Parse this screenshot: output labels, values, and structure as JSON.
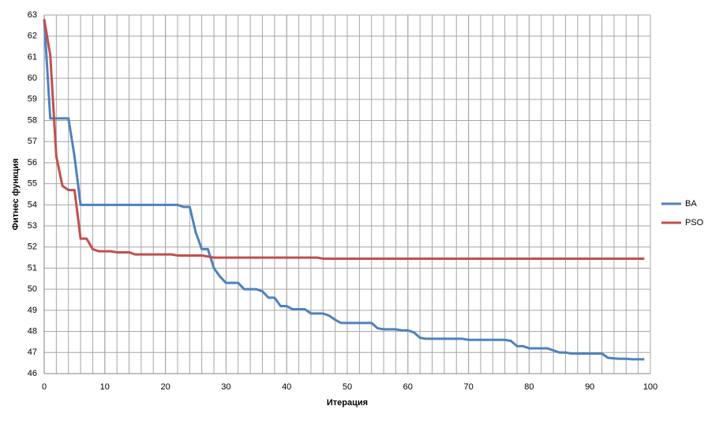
{
  "chart_data": {
    "type": "line",
    "x_label": "Итерация",
    "y_label": "Фитнес функция",
    "x": [
      0,
      1,
      2,
      3,
      4,
      5,
      6,
      7,
      8,
      9,
      10,
      11,
      12,
      13,
      14,
      15,
      16,
      17,
      18,
      19,
      20,
      21,
      22,
      23,
      24,
      25,
      26,
      27,
      28,
      29,
      30,
      31,
      32,
      33,
      34,
      35,
      36,
      37,
      38,
      39,
      40,
      41,
      42,
      43,
      44,
      45,
      46,
      47,
      48,
      49,
      50,
      51,
      52,
      53,
      54,
      55,
      56,
      57,
      58,
      59,
      60,
      61,
      62,
      63,
      64,
      65,
      66,
      67,
      68,
      69,
      70,
      71,
      72,
      73,
      74,
      75,
      76,
      77,
      78,
      79,
      80,
      81,
      82,
      83,
      84,
      85,
      86,
      87,
      88,
      89,
      90,
      91,
      92,
      93,
      94,
      95,
      96,
      97,
      98,
      99
    ],
    "series": [
      {
        "name": "BA",
        "color": "#4f81bd",
        "values": [
          62.8,
          58.1,
          58.1,
          58.1,
          58.1,
          56.3,
          54,
          54,
          54,
          54,
          54,
          54,
          54,
          54,
          54,
          54,
          54,
          54,
          54,
          54,
          54,
          54,
          54,
          53.9,
          53.9,
          52.7,
          51.9,
          51.9,
          51.0,
          50.6,
          50.3,
          50.3,
          50.3,
          50.0,
          50.0,
          50.0,
          49.9,
          49.6,
          49.6,
          49.2,
          49.2,
          49.05,
          49.05,
          49.05,
          48.85,
          48.85,
          48.85,
          48.75,
          48.55,
          48.4,
          48.4,
          48.4,
          48.4,
          48.4,
          48.4,
          48.15,
          48.1,
          48.1,
          48.1,
          48.05,
          48.05,
          47.95,
          47.7,
          47.65,
          47.65,
          47.65,
          47.65,
          47.65,
          47.65,
          47.65,
          47.6,
          47.6,
          47.6,
          47.6,
          47.6,
          47.6,
          47.6,
          47.55,
          47.3,
          47.3,
          47.2,
          47.2,
          47.2,
          47.2,
          47.1,
          47.0,
          47.0,
          46.95,
          46.95,
          46.95,
          46.95,
          46.95,
          46.95,
          46.75,
          46.72,
          46.7,
          46.7,
          46.68,
          46.68,
          46.68
        ]
      },
      {
        "name": "PSO",
        "color": "#c0504d",
        "values": [
          62.8,
          61.1,
          56.3,
          54.9,
          54.7,
          54.7,
          52.4,
          52.4,
          51.9,
          51.8,
          51.8,
          51.8,
          51.75,
          51.75,
          51.75,
          51.65,
          51.65,
          51.65,
          51.65,
          51.65,
          51.65,
          51.65,
          51.6,
          51.6,
          51.6,
          51.6,
          51.6,
          51.55,
          51.5,
          51.5,
          51.5,
          51.5,
          51.5,
          51.5,
          51.5,
          51.5,
          51.5,
          51.5,
          51.5,
          51.5,
          51.5,
          51.5,
          51.5,
          51.5,
          51.5,
          51.5,
          51.45,
          51.45,
          51.45,
          51.45,
          51.45,
          51.45,
          51.45,
          51.45,
          51.45,
          51.45,
          51.45,
          51.45,
          51.45,
          51.45,
          51.45,
          51.45,
          51.45,
          51.45,
          51.45,
          51.45,
          51.45,
          51.45,
          51.45,
          51.45,
          51.45,
          51.45,
          51.45,
          51.45,
          51.45,
          51.45,
          51.45,
          51.45,
          51.45,
          51.45,
          51.45,
          51.45,
          51.45,
          51.45,
          51.45,
          51.45,
          51.45,
          51.45,
          51.45,
          51.45,
          51.45,
          51.45,
          51.45,
          51.45,
          51.45,
          51.45,
          51.45,
          51.45,
          51.45,
          51.45
        ]
      }
    ],
    "xlim": [
      0,
      100
    ],
    "xticks": [
      0,
      10,
      20,
      30,
      40,
      50,
      60,
      70,
      80,
      90,
      100
    ],
    "ylim": [
      46,
      63
    ],
    "yticks": [
      46,
      47,
      48,
      49,
      50,
      51,
      52,
      53,
      54,
      55,
      56,
      57,
      58,
      59,
      60,
      61,
      62,
      63
    ],
    "grid": true,
    "minor_grid_step": 2,
    "legend": "right"
  }
}
